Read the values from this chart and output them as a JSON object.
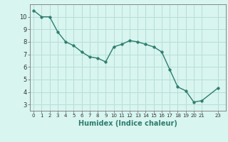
{
  "x": [
    0,
    1,
    2,
    3,
    4,
    5,
    6,
    7,
    8,
    9,
    10,
    11,
    12,
    13,
    14,
    15,
    16,
    17,
    18,
    19,
    20,
    21,
    23
  ],
  "y": [
    10.5,
    10.0,
    10.0,
    8.8,
    8.0,
    7.7,
    7.2,
    6.8,
    6.7,
    6.4,
    7.6,
    7.8,
    8.1,
    8.0,
    7.8,
    7.6,
    7.2,
    5.8,
    4.4,
    4.1,
    3.2,
    3.3,
    4.3
  ],
  "line_color": "#2e7d6e",
  "marker": "o",
  "markersize": 2.5,
  "linewidth": 1.0,
  "bg_color": "#d8f5f0",
  "grid_color": "#b8ddd8",
  "xlabel": "Humidex (Indice chaleur)",
  "xlabel_fontsize": 7,
  "tick_fontsize_x": 5,
  "tick_fontsize_y": 6,
  "yticks": [
    3,
    4,
    5,
    6,
    7,
    8,
    9,
    10
  ],
  "xticks": [
    0,
    1,
    2,
    3,
    4,
    5,
    6,
    7,
    8,
    9,
    10,
    11,
    12,
    13,
    14,
    15,
    16,
    17,
    18,
    19,
    20,
    21,
    23
  ],
  "xlim": [
    -0.5,
    24.0
  ],
  "ylim": [
    2.5,
    11.0
  ]
}
